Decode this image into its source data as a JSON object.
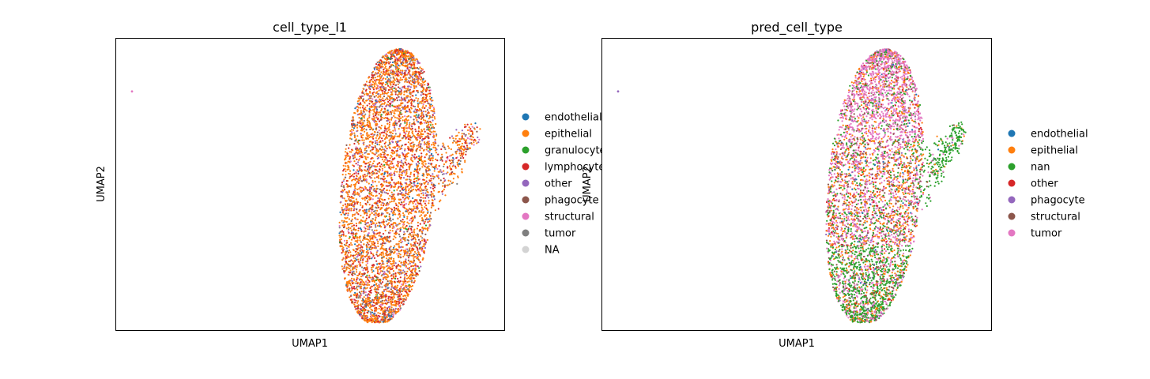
{
  "chart_data": [
    {
      "type": "scatter",
      "title": "cell_type_l1",
      "xlabel": "UMAP1",
      "ylabel": "UMAP2",
      "xlim": [
        -4.5,
        7.5
      ],
      "ylim": [
        -5.2,
        5.8
      ],
      "ticks_shown": false,
      "grid": false,
      "legend_position": "right",
      "outlier": {
        "x": -4.0,
        "y": 3.8,
        "label": "structural"
      },
      "categories": [
        {
          "name": "endothelial",
          "color": "#1f77b4",
          "weight": 0.03
        },
        {
          "name": "epithelial",
          "color": "#ff7f0e",
          "weight": 0.55
        },
        {
          "name": "granulocyte",
          "color": "#2ca02c",
          "weight": 0.01
        },
        {
          "name": "lymphocyte",
          "color": "#d62728",
          "weight": 0.18
        },
        {
          "name": "other",
          "color": "#9467bd",
          "weight": 0.07
        },
        {
          "name": "phagocyte",
          "color": "#8c564b",
          "weight": 0.06
        },
        {
          "name": "structural",
          "color": "#e377c2",
          "weight": 0.05
        },
        {
          "name": "tumor",
          "color": "#7f7f7f",
          "weight": 0.05
        },
        {
          "name": "NA",
          "color": "#d3d3d3",
          "weight": 0.0
        }
      ]
    },
    {
      "type": "scatter",
      "title": "pred_cell_type",
      "xlabel": "UMAP1",
      "ylabel": "UMAP2",
      "xlim": [
        -4.5,
        7.5
      ],
      "ylim": [
        -5.2,
        5.8
      ],
      "ticks_shown": false,
      "grid": false,
      "legend_position": "right",
      "outlier": {
        "x": -4.0,
        "y": 3.8,
        "label": "phagocyte"
      },
      "categories": [
        {
          "name": "endothelial",
          "color": "#1f77b4",
          "weight": 0.02
        },
        {
          "name": "epithelial",
          "color": "#ff7f0e",
          "weight": 0.25
        },
        {
          "name": "nan",
          "color": "#2ca02c",
          "weight": 0.2
        },
        {
          "name": "other",
          "color": "#d62728",
          "weight": 0.06
        },
        {
          "name": "phagocyte",
          "color": "#9467bd",
          "weight": 0.03
        },
        {
          "name": "structural",
          "color": "#8c564b",
          "weight": 0.09
        },
        {
          "name": "tumor",
          "color": "#e377c2",
          "weight": 0.35
        }
      ]
    }
  ]
}
